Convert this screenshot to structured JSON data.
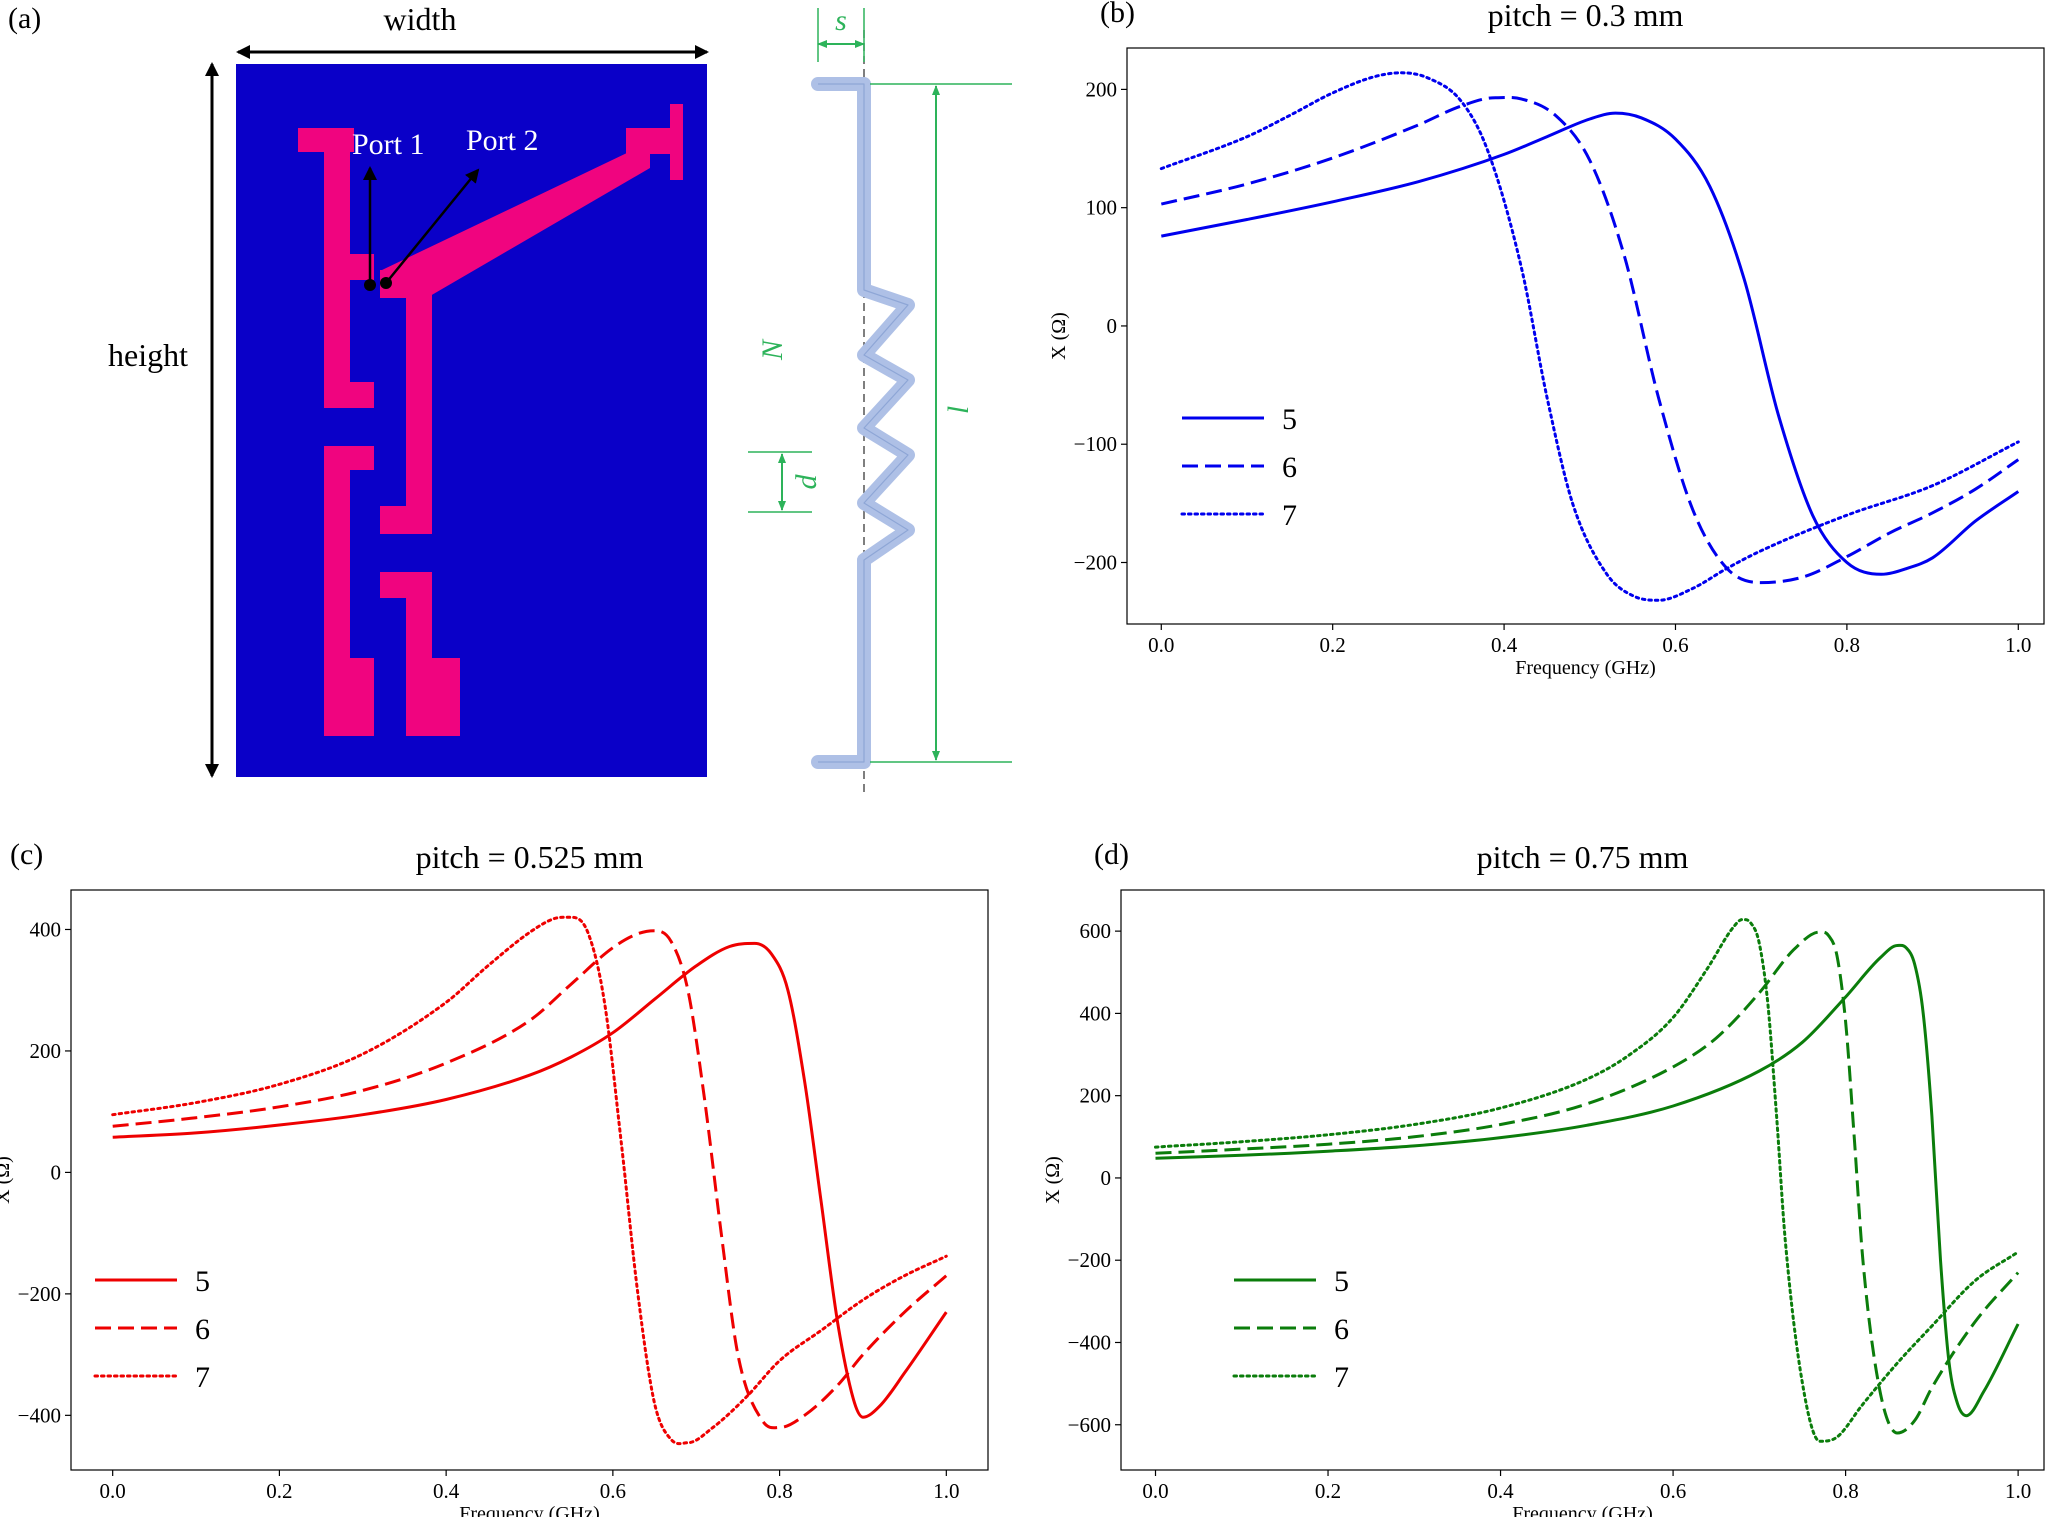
{
  "panel_a": {
    "label": "(a)",
    "width_label": "width",
    "height_label": "height",
    "port1_label": "Port 1",
    "port2_label": "Port 2",
    "spring_labels": {
      "s": "s",
      "N": "N",
      "d": "d",
      "l": "l"
    },
    "colors": {
      "substrate": "#0a00c8",
      "trace": "#f0047f",
      "spring": "#aec0e6",
      "dimension": "#2db35a"
    }
  },
  "chart_data": [
    {
      "panel_label": "(b)",
      "type": "line",
      "title": "pitch = 0.3 mm",
      "xlabel": "Frequency (GHz)",
      "ylabel": "X (Ω)",
      "xlim": [
        -0.04,
        1.03
      ],
      "ylim": [
        -252,
        235
      ],
      "xticks": [
        0.0,
        0.2,
        0.4,
        0.6,
        0.8,
        1.0
      ],
      "yticks": [
        -200,
        -100,
        0,
        100,
        200
      ],
      "color": "#0000ee",
      "legend_position": "left",
      "series": [
        {
          "name": "5",
          "style": "solid",
          "x": [
            0,
            0.1,
            0.2,
            0.3,
            0.4,
            0.45,
            0.5,
            0.53,
            0.56,
            0.6,
            0.64,
            0.68,
            0.72,
            0.76,
            0.8,
            0.84,
            0.87,
            0.9,
            0.95,
            1.0
          ],
          "y": [
            76,
            90,
            105,
            122,
            145,
            160,
            175,
            180,
            176,
            158,
            118,
            40,
            -75,
            -160,
            -200,
            -210,
            -205,
            -196,
            -165,
            -140
          ]
        },
        {
          "name": "6",
          "style": "dashed",
          "x": [
            0,
            0.1,
            0.2,
            0.3,
            0.35,
            0.39,
            0.42,
            0.46,
            0.5,
            0.54,
            0.58,
            0.62,
            0.66,
            0.7,
            0.75,
            0.8,
            0.85,
            0.9,
            0.95,
            1.0
          ],
          "y": [
            103,
            120,
            142,
            170,
            186,
            193,
            192,
            178,
            140,
            60,
            -60,
            -155,
            -205,
            -217,
            -212,
            -195,
            -175,
            -158,
            -138,
            -113
          ]
        },
        {
          "name": "7",
          "style": "dotted",
          "x": [
            0,
            0.1,
            0.15,
            0.2,
            0.25,
            0.28,
            0.31,
            0.35,
            0.38,
            0.42,
            0.45,
            0.48,
            0.52,
            0.55,
            0.58,
            0.62,
            0.66,
            0.7,
            0.8,
            0.9,
            1.0
          ],
          "y": [
            133,
            160,
            178,
            197,
            211,
            214,
            210,
            190,
            150,
            50,
            -60,
            -150,
            -210,
            -228,
            -232,
            -222,
            -205,
            -190,
            -160,
            -135,
            -98
          ]
        }
      ],
      "legend": [
        "5",
        "6",
        "7"
      ]
    },
    {
      "panel_label": "(c)",
      "type": "line",
      "title": "pitch = 0.525 mm",
      "xlabel": "Frequency (GHz)",
      "ylabel": "X (Ω)",
      "xlim": [
        -0.05,
        1.05
      ],
      "ylim": [
        -490,
        465
      ],
      "xticks": [
        0.0,
        0.2,
        0.4,
        0.6,
        0.8,
        1.0
      ],
      "yticks": [
        -400,
        -200,
        0,
        200,
        400
      ],
      "color": "#ee0000",
      "legend_position": "left",
      "series": [
        {
          "name": "5",
          "style": "solid",
          "x": [
            0,
            0.1,
            0.2,
            0.3,
            0.4,
            0.5,
            0.55,
            0.6,
            0.65,
            0.7,
            0.74,
            0.77,
            0.79,
            0.81,
            0.83,
            0.85,
            0.87,
            0.89,
            0.9,
            0.92,
            0.95,
            1.0
          ],
          "y": [
            58,
            65,
            78,
            95,
            120,
            160,
            190,
            230,
            285,
            340,
            372,
            377,
            360,
            300,
            150,
            -50,
            -250,
            -380,
            -403,
            -385,
            -330,
            -230
          ]
        },
        {
          "name": "6",
          "style": "dashed",
          "x": [
            0,
            0.1,
            0.2,
            0.3,
            0.4,
            0.5,
            0.55,
            0.6,
            0.63,
            0.65,
            0.67,
            0.69,
            0.71,
            0.73,
            0.75,
            0.78,
            0.8,
            0.83,
            0.87,
            0.9,
            0.95,
            1.0
          ],
          "y": [
            76,
            90,
            108,
            135,
            180,
            250,
            310,
            370,
            393,
            398,
            380,
            300,
            120,
            -100,
            -300,
            -410,
            -420,
            -400,
            -350,
            -300,
            -230,
            -170
          ]
        },
        {
          "name": "7",
          "style": "dotted",
          "x": [
            0,
            0.1,
            0.2,
            0.3,
            0.4,
            0.45,
            0.5,
            0.53,
            0.55,
            0.57,
            0.59,
            0.61,
            0.63,
            0.65,
            0.67,
            0.69,
            0.72,
            0.76,
            0.8,
            0.85,
            0.9,
            0.95,
            1.0
          ],
          "y": [
            95,
            115,
            145,
            195,
            280,
            340,
            395,
            418,
            420,
            395,
            280,
            50,
            -200,
            -380,
            -440,
            -445,
            -420,
            -370,
            -310,
            -260,
            -210,
            -170,
            -138
          ]
        }
      ],
      "legend": [
        "5",
        "6",
        "7"
      ]
    },
    {
      "panel_label": "(d)",
      "type": "line",
      "title": "pitch = 0.75 mm",
      "xlabel": "Frequency (GHz)",
      "ylabel": "X (Ω)",
      "xlim": [
        -0.04,
        1.03
      ],
      "ylim": [
        -710,
        700
      ],
      "xticks": [
        0.0,
        0.2,
        0.4,
        0.6,
        0.8,
        1.0
      ],
      "yticks": [
        -600,
        -400,
        -200,
        0,
        200,
        400,
        600
      ],
      "color": "#0b7d0b",
      "legend_position": "left",
      "series": [
        {
          "name": "5",
          "style": "solid",
          "x": [
            0,
            0.1,
            0.2,
            0.3,
            0.4,
            0.5,
            0.6,
            0.7,
            0.75,
            0.8,
            0.84,
            0.86,
            0.87,
            0.88,
            0.89,
            0.9,
            0.91,
            0.92,
            0.93,
            0.94,
            0.96,
            1.0
          ],
          "y": [
            48,
            55,
            65,
            78,
            98,
            128,
            175,
            260,
            330,
            440,
            535,
            565,
            560,
            520,
            400,
            150,
            -200,
            -450,
            -550,
            -578,
            -520,
            -355
          ]
        },
        {
          "name": "6",
          "style": "dashed",
          "x": [
            0,
            0.1,
            0.2,
            0.3,
            0.4,
            0.5,
            0.6,
            0.65,
            0.7,
            0.74,
            0.77,
            0.78,
            0.79,
            0.8,
            0.81,
            0.82,
            0.84,
            0.86,
            0.88,
            0.9,
            0.95,
            1.0
          ],
          "y": [
            60,
            70,
            82,
            100,
            130,
            180,
            270,
            340,
            450,
            555,
            598,
            590,
            540,
            380,
            100,
            -200,
            -520,
            -620,
            -590,
            -510,
            -350,
            -230
          ]
        },
        {
          "name": "7",
          "style": "dotted",
          "x": [
            0,
            0.1,
            0.2,
            0.3,
            0.4,
            0.5,
            0.55,
            0.6,
            0.64,
            0.67,
            0.68,
            0.69,
            0.7,
            0.71,
            0.72,
            0.73,
            0.75,
            0.77,
            0.79,
            0.82,
            0.86,
            0.9,
            0.95,
            1.0
          ],
          "y": [
            75,
            88,
            105,
            130,
            170,
            240,
            300,
            390,
            510,
            610,
            628,
            620,
            570,
            420,
            150,
            -150,
            -500,
            -640,
            -630,
            -550,
            -450,
            -360,
            -250,
            -180
          ]
        }
      ],
      "legend": [
        "5",
        "6",
        "7"
      ]
    }
  ]
}
